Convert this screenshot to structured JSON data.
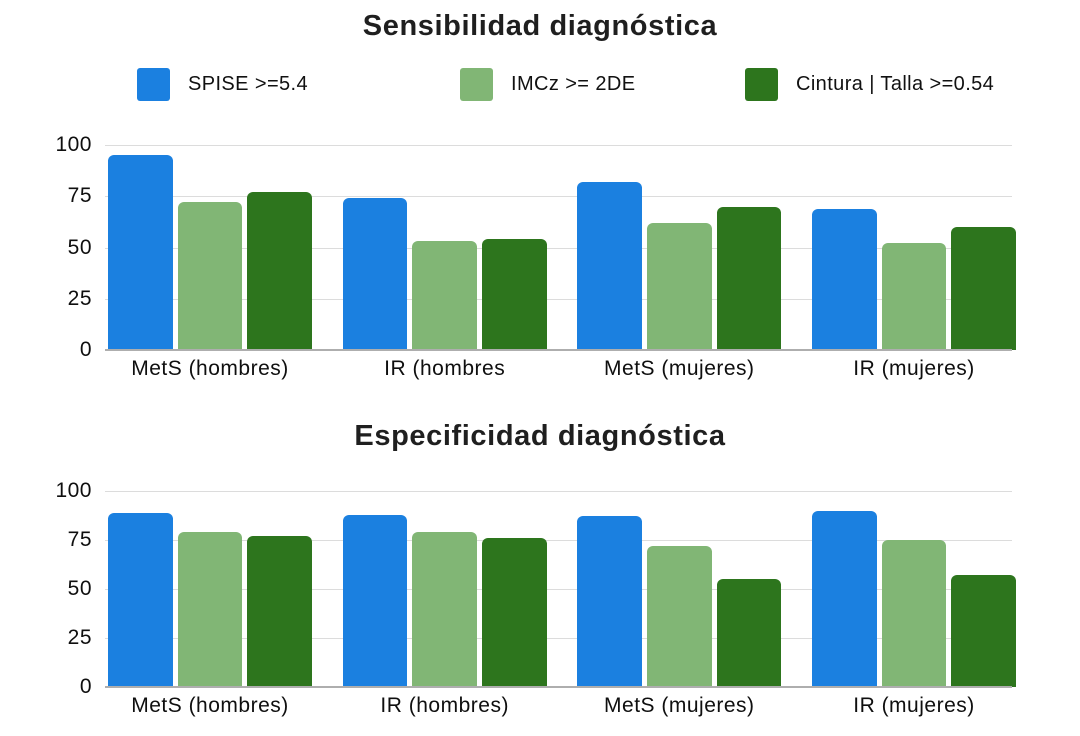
{
  "page": {
    "background": "#ffffff",
    "text_color": "#1c1c1c",
    "grid_color": "#dcdcdc",
    "baseline_color": "#aeaeae"
  },
  "chart_data": [
    {
      "type": "bar",
      "title": "Sensibilidad diagnóstica",
      "categories": [
        "MetS (hombres)",
        "IR (hombres",
        "MetS (mujeres)",
        "IR (mujeres)"
      ],
      "series": [
        {
          "key": "spise",
          "name": "SPISE >=5.4",
          "color": "#1b80e0",
          "values": [
            95,
            74,
            82,
            69
          ]
        },
        {
          "key": "imcz",
          "name": "IMCz >= 2DE",
          "color": "#81b675",
          "values": [
            72,
            53,
            62,
            52
          ]
        },
        {
          "key": "cintura",
          "name": "Cintura | Talla >=0.54",
          "color": "#2d751d",
          "values": [
            77,
            54,
            70,
            60
          ]
        }
      ],
      "ylim": [
        0,
        100
      ],
      "yticks": [
        0,
        25,
        50,
        75,
        100
      ],
      "grid": true,
      "legend_position": "top"
    },
    {
      "type": "bar",
      "title": "Especificidad diagnóstica",
      "categories": [
        "MetS (hombres)",
        "IR (hombres)",
        "MetS (mujeres)",
        "IR (mujeres)"
      ],
      "series": [
        {
          "key": "spise",
          "name": "SPISE >=5.4",
          "color": "#1b80e0",
          "values": [
            89,
            88,
            87,
            90
          ]
        },
        {
          "key": "imcz",
          "name": "IMCz >= 2DE",
          "color": "#81b675",
          "values": [
            79,
            79,
            72,
            75
          ]
        },
        {
          "key": "cintura",
          "name": "Cintura | Talla >=0.54",
          "color": "#2d751d",
          "values": [
            77,
            76,
            55,
            57
          ]
        }
      ],
      "ylim": [
        0,
        100
      ],
      "yticks": [
        0,
        25,
        50,
        75,
        100
      ],
      "grid": true,
      "legend_position": "none"
    }
  ]
}
